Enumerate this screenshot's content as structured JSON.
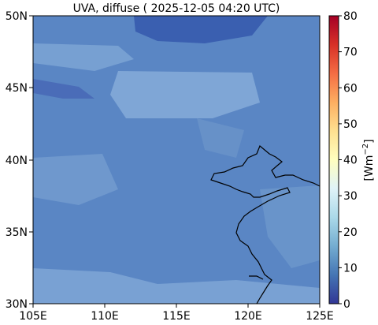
{
  "title": "UVA, diffuse ( 2025-12-05 04:20 UTC)",
  "map": {
    "x_ticks": [
      "105E",
      "110E",
      "115E",
      "120E",
      "125E"
    ],
    "y_ticks": [
      "50N",
      "45N",
      "40N",
      "35N",
      "30N"
    ],
    "lon_range": [
      105,
      125
    ],
    "lat_range": [
      30,
      50
    ],
    "field_typical_value": 12,
    "coastline_color": "#000000"
  },
  "colorbar": {
    "label": "[Wm",
    "label_exp": "−2",
    "label_close": "]",
    "ticks": [
      "0",
      "10",
      "20",
      "30",
      "40",
      "50",
      "60",
      "70",
      "80"
    ],
    "range": [
      0,
      80
    ],
    "colormap": "RdYlBu_r",
    "colors": [
      "#313695",
      "#4575b4",
      "#74add1",
      "#abd9e9",
      "#e0f3f8",
      "#ffffbf",
      "#fee090",
      "#fdae61",
      "#f46d43",
      "#d73027",
      "#a50026"
    ]
  }
}
